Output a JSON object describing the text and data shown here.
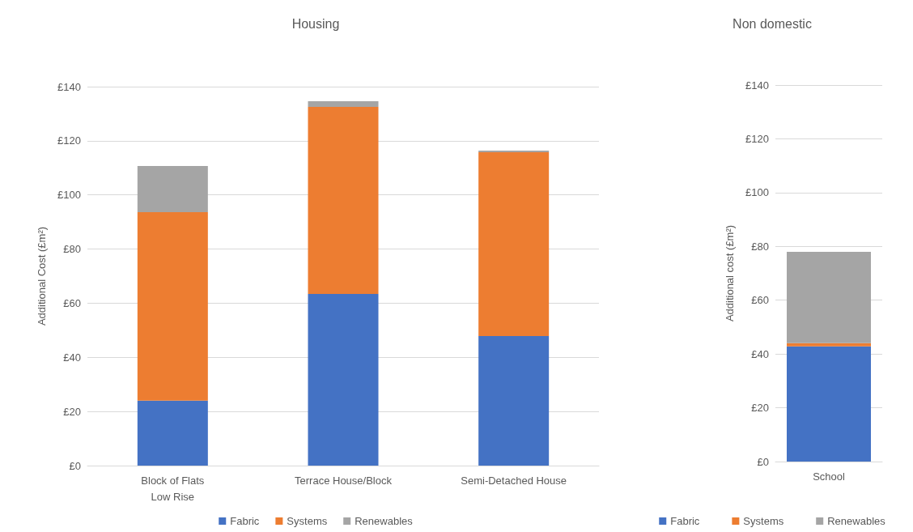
{
  "chart_data": [
    {
      "type": "bar",
      "stacked": true,
      "title": "Housing",
      "ylabel": "Additional Cost (£m²)",
      "categories": [
        "Block of Flats\nLow Rise",
        "Terrace House/Block",
        "Semi-Detached House"
      ],
      "series": [
        {
          "name": "Fabric",
          "color": "#4472c4",
          "values": [
            24,
            63.4,
            47.9
          ]
        },
        {
          "name": "Systems",
          "color": "#ed7d31",
          "values": [
            69.6,
            69.1,
            67.9
          ]
        },
        {
          "name": "Renewables",
          "color": "#a5a5a5",
          "values": [
            17.1,
            2.1,
            0.6
          ]
        }
      ],
      "ylim": [
        0,
        140
      ],
      "yticks": [
        {
          "value": 0,
          "label": "£0"
        },
        {
          "value": 20,
          "label": "£20"
        },
        {
          "value": 40,
          "label": "£40"
        },
        {
          "value": 60,
          "label": "£60"
        },
        {
          "value": 80,
          "label": "£80"
        },
        {
          "value": 100,
          "label": "£100"
        },
        {
          "value": 120,
          "label": "£120"
        },
        {
          "value": 140,
          "label": "£140"
        }
      ],
      "grid": "y",
      "legend": "bottom"
    },
    {
      "type": "bar",
      "stacked": true,
      "title": "Non domestic",
      "ylabel": "Additional cost (£m²)",
      "categories": [
        "School"
      ],
      "series": [
        {
          "name": "Fabric",
          "color": "#4472c4",
          "values": [
            42.8
          ]
        },
        {
          "name": "Systems",
          "color": "#ed7d31",
          "values": [
            1.2
          ]
        },
        {
          "name": "Renewables",
          "color": "#a5a5a5",
          "values": [
            34
          ]
        }
      ],
      "ylim": [
        0,
        140
      ],
      "yticks": [
        {
          "value": 0,
          "label": "£0"
        },
        {
          "value": 20,
          "label": "£20"
        },
        {
          "value": 40,
          "label": "£40"
        },
        {
          "value": 60,
          "label": "£60"
        },
        {
          "value": 80,
          "label": "£80"
        },
        {
          "value": 100,
          "label": "£100"
        },
        {
          "value": 120,
          "label": "£120"
        },
        {
          "value": 140,
          "label": "£140"
        }
      ],
      "grid": "y",
      "legend": "bottom"
    }
  ]
}
